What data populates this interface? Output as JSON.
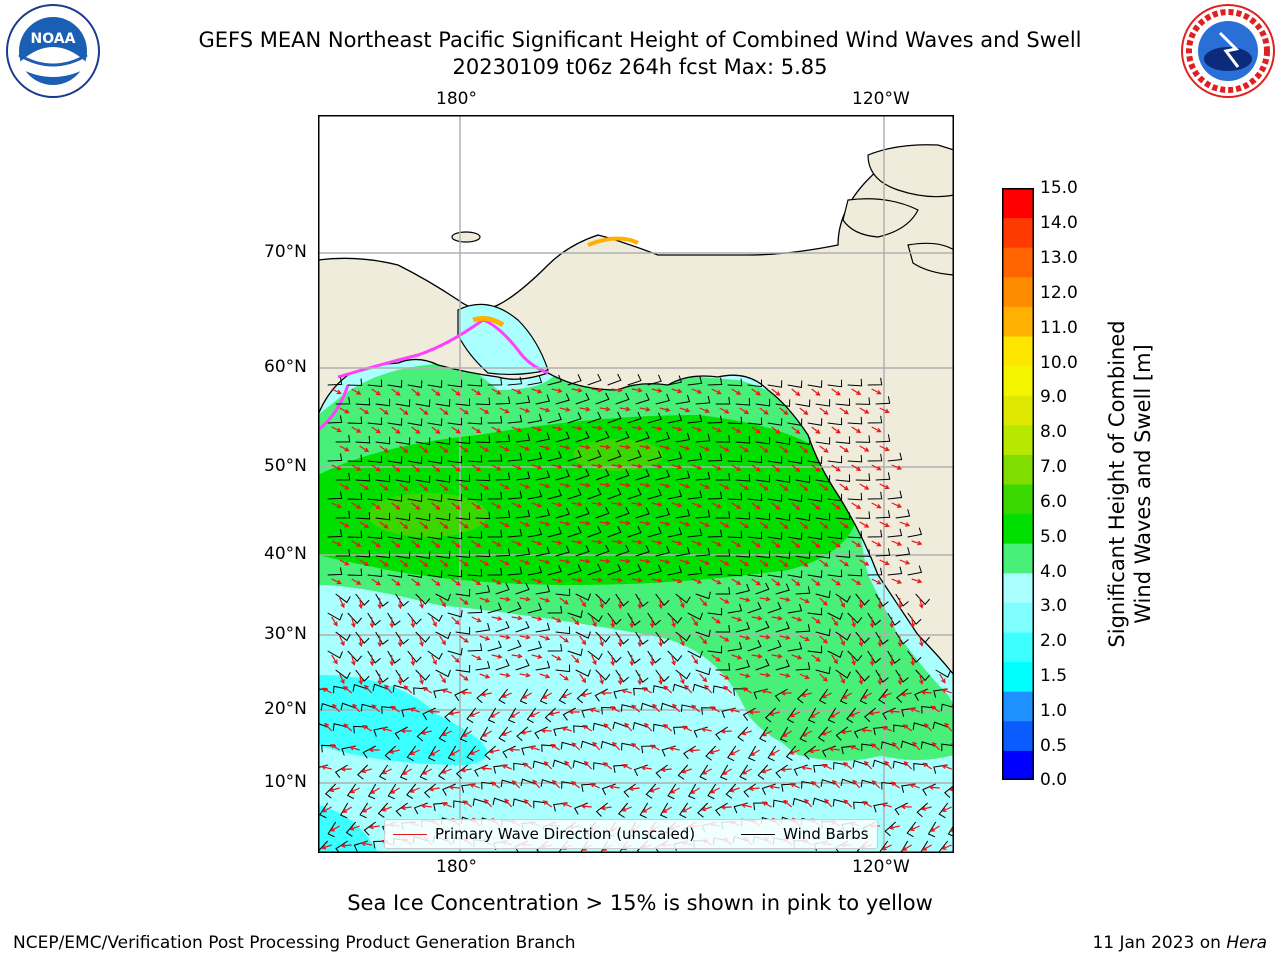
{
  "header": {
    "title_line1": "GEFS MEAN Northeast Pacific Significant Height of Combined Wind Waves and Swell",
    "title_line2": "20230109 t06z 264h fcst   Max: 5.85"
  },
  "logos": {
    "left": {
      "name": "noaa-logo",
      "text": "NOAA"
    },
    "right": {
      "name": "nws-logo",
      "text": "NATIONAL WEATHER SERVICE"
    }
  },
  "map": {
    "top_lon_labels": [
      "180°",
      "120°W"
    ],
    "bottom_lon_labels": [
      "180°",
      "120°W"
    ],
    "lat_labels": [
      "70°N",
      "60°N",
      "50°N",
      "40°N",
      "30°N",
      "20°N",
      "10°N"
    ],
    "colors": {
      "land": "#efecdc",
      "gridline": "#b0b0b0",
      "wave_arrow": "#e8171a",
      "wind_barb": "#000000"
    }
  },
  "legend": {
    "wave_label": "Primary Wave Direction (unscaled)",
    "barb_label": "Wind Barbs"
  },
  "colorbar": {
    "label_line1": "Significant Height of Combined",
    "label_line2": "Wind Waves and Swell [m]",
    "ticks": [
      "15.0",
      "14.0",
      "13.0",
      "12.0",
      "11.0",
      "10.0",
      "9.0",
      "8.0",
      "7.0",
      "6.0",
      "5.0",
      "4.0",
      "3.0",
      "2.0",
      "1.5",
      "1.0",
      "0.5",
      "0.0"
    ],
    "bands_bottom_to_top": [
      "#0000ff",
      "#0a5cff",
      "#1e90ff",
      "#00ffff",
      "#3cffff",
      "#7fffff",
      "#aaffff",
      "#48f07a",
      "#00e000",
      "#3ad800",
      "#80dd00",
      "#b8e800",
      "#dfe800",
      "#f5f500",
      "#ffe600",
      "#ffb000",
      "#ff8c00",
      "#ff6400",
      "#ff3a00",
      "#ff0000"
    ]
  },
  "footer": {
    "note": "Sea Ice Concentration > 15% is shown in pink to yellow",
    "left": "NCEP/EMC/Verification Post Processing Product Generation Branch",
    "right_date": "11 Jan 2023 on ",
    "right_host": "Hera"
  }
}
